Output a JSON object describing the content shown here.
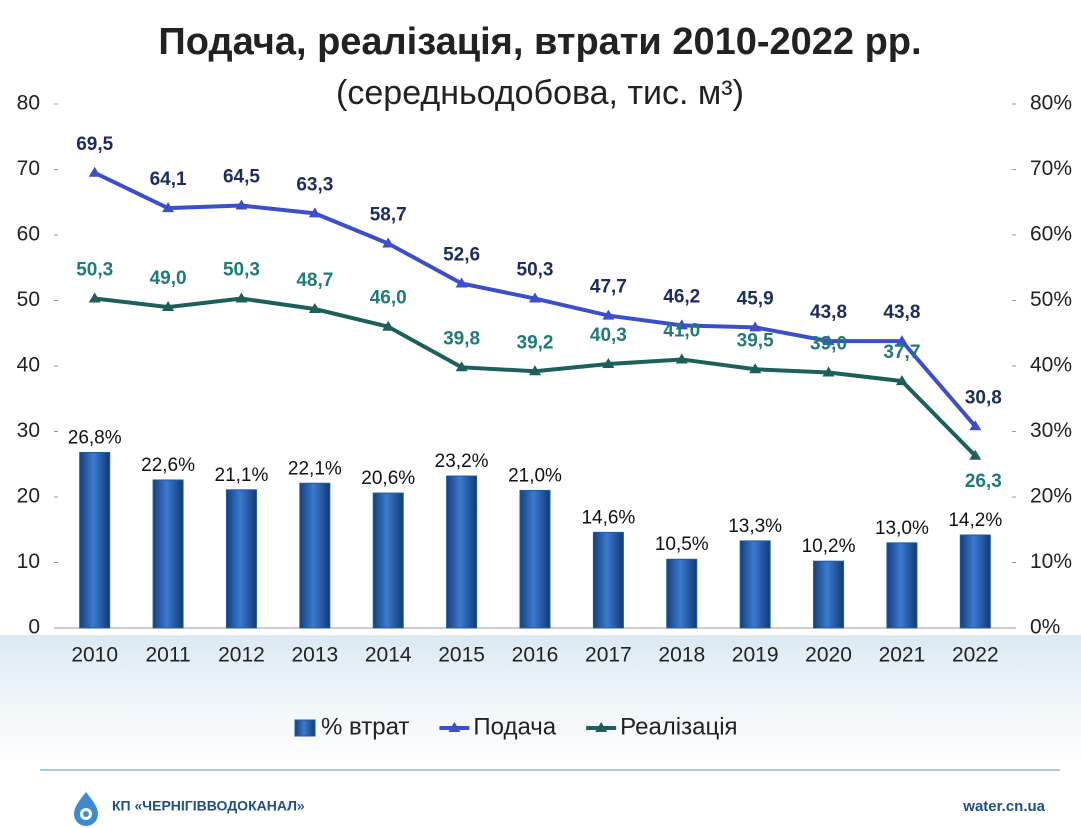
{
  "chart_data": {
    "type": "combo",
    "title": "Подача, реалізація, втрати 2010-2022 рр.",
    "subtitle": "(середньодобова, тис. м³)",
    "categories": [
      "2010",
      "2011",
      "2012",
      "2013",
      "2014",
      "2015",
      "2016",
      "2017",
      "2018",
      "2019",
      "2020",
      "2021",
      "2022"
    ],
    "series": [
      {
        "name": "% втрат",
        "type": "bar",
        "axis": "y2",
        "color": "#1f5aa6",
        "values": [
          26.8,
          22.6,
          21.1,
          22.1,
          20.6,
          23.2,
          21.0,
          14.6,
          10.5,
          13.3,
          10.2,
          13.0,
          14.2
        ],
        "value_labels": [
          "26,8%",
          "22,6%",
          "21,1%",
          "22,1%",
          "20,6%",
          "23,2%",
          "21,0%",
          "14,6%",
          "10,5%",
          "13,3%",
          "10,2%",
          "13,0%",
          "14,2%"
        ]
      },
      {
        "name": "Подача",
        "type": "line",
        "color": "#3d4fc8",
        "values": [
          69.5,
          64.1,
          64.5,
          63.3,
          58.7,
          52.6,
          50.3,
          47.7,
          46.2,
          45.9,
          43.8,
          43.8,
          30.8
        ],
        "value_labels": [
          "69,5",
          "64,1",
          "64,5",
          "63,3",
          "58,7",
          "52,6",
          "50,3",
          "47,7",
          "46,2",
          "45,9",
          "43,8",
          "43,8",
          "30,8"
        ]
      },
      {
        "name": "Реалізація",
        "type": "line",
        "color": "#1d5f5a",
        "values": [
          50.3,
          49.0,
          50.3,
          48.7,
          46.0,
          39.8,
          39.2,
          40.3,
          41.0,
          39.5,
          39.0,
          37.7,
          26.3
        ],
        "value_labels": [
          "50,3",
          "49,0",
          "50,3",
          "48,7",
          "46,0",
          "39,8",
          "39,2",
          "40,3",
          "41,0",
          "39,5",
          "39,0",
          "37,7",
          "26,3"
        ]
      }
    ],
    "ylim": [
      0,
      80
    ],
    "yticks": [
      0,
      10,
      20,
      30,
      40,
      50,
      60,
      70,
      80
    ],
    "y2lim": [
      0,
      80
    ],
    "y2ticks": [
      {
        "value": 0,
        "label": "0%"
      },
      {
        "value": 10,
        "label": "10%"
      },
      {
        "value": 20,
        "label": "20%"
      },
      {
        "value": 30,
        "label": "30%"
      },
      {
        "value": 40,
        "label": "40%"
      },
      {
        "value": 50,
        "label": "50%"
      },
      {
        "value": 60,
        "label": "60%"
      },
      {
        "value": 70,
        "label": "70%"
      },
      {
        "value": 80,
        "label": "80%"
      }
    ],
    "legend": "bottom"
  },
  "footer": {
    "organization": "КП «ЧЕРНІГІВВОДОКАНАЛ»",
    "website": "water.cn.ua"
  }
}
